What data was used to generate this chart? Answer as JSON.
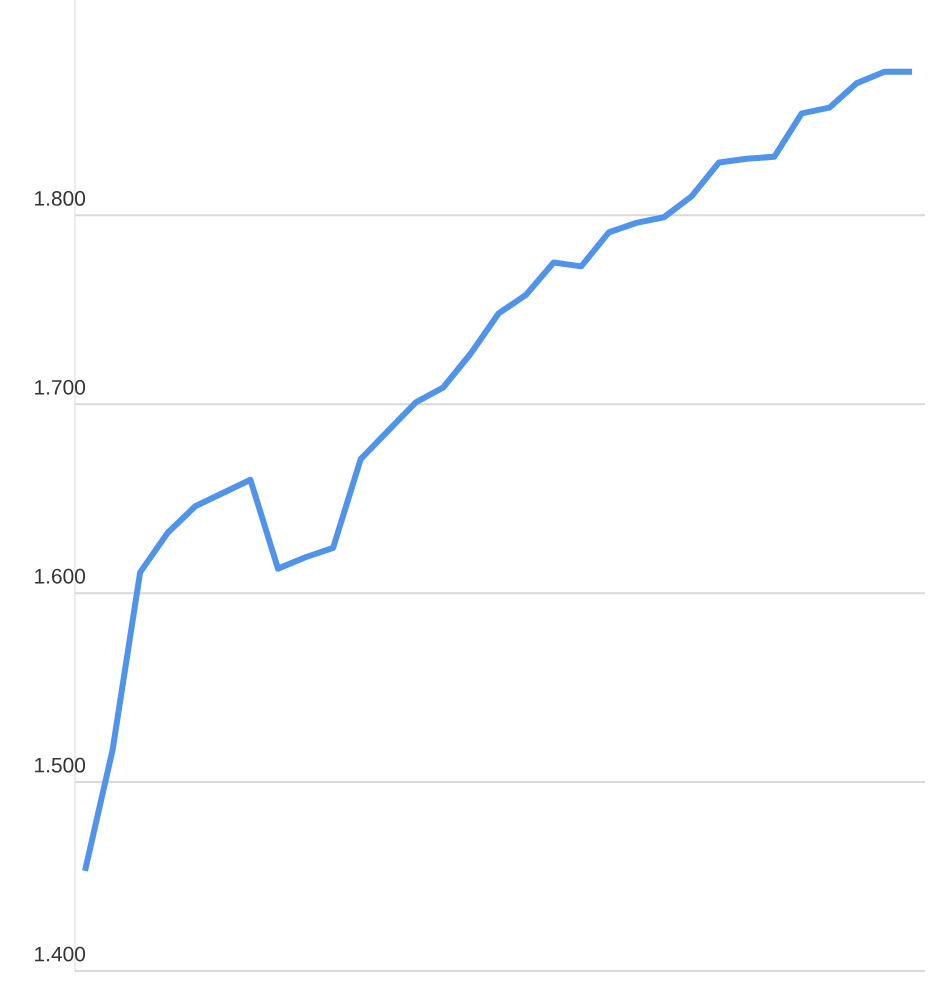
{
  "chart_data": {
    "type": "line",
    "categories": [
      null,
      null,
      null,
      null,
      null,
      null,
      null,
      null,
      null,
      null,
      null,
      null,
      null,
      null,
      null,
      null,
      null,
      null,
      null,
      null,
      null,
      null,
      null,
      null,
      null,
      null,
      null,
      null,
      null,
      null,
      null
    ],
    "series": [
      {
        "color": "#4f94ea",
        "values": [
          1.453,
          1.517,
          1.611,
          1.632,
          1.646,
          1.653,
          1.66,
          1.613,
          1.619,
          1.624,
          1.671,
          1.686,
          1.701,
          1.709,
          1.727,
          1.748,
          1.758,
          1.775,
          1.773,
          1.791,
          1.796,
          1.799,
          1.81,
          1.828,
          1.83,
          1.831,
          1.854,
          1.857,
          1.87,
          1.876,
          1.876
        ]
      }
    ],
    "ylim": [
      1.4,
      1.914
    ],
    "yticks": [
      {
        "value": 1.4,
        "label": "1.400"
      },
      {
        "value": 1.5,
        "label": "1.500"
      },
      {
        "value": 1.6,
        "label": "1.600"
      },
      {
        "value": 1.7,
        "label": "1.700"
      },
      {
        "value": 1.8,
        "label": "1.800"
      }
    ],
    "grid": "y",
    "marker": "none",
    "line_style": "solid"
  }
}
